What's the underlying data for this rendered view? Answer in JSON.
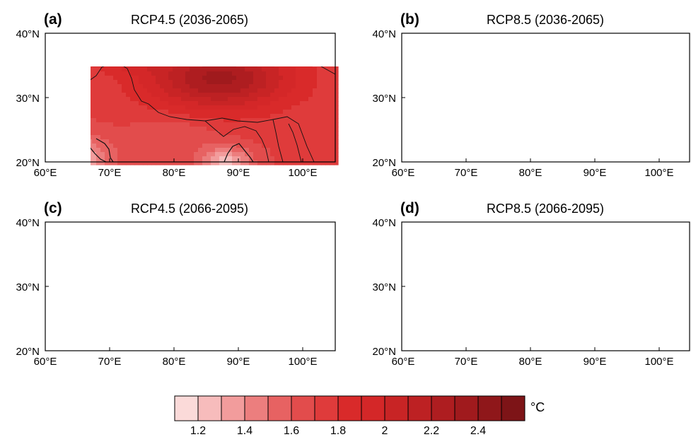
{
  "panels": [
    {
      "tag": "(a)",
      "title": "RCP4.5 (2036-2065)",
      "intensity": 0.82
    },
    {
      "tag": "(b)",
      "title": "RCP8.5 (2036-2065)",
      "intensity": 0.95
    },
    {
      "tag": "(c)",
      "title": "RCP4.5 (2066-2095)",
      "intensity": 0.95
    },
    {
      "tag": "(d)",
      "title": "RCP8.5 (2066-2095)",
      "intensity": 1.05
    }
  ],
  "lat_labels": [
    "40°N",
    "30°N",
    "20°N"
  ],
  "lon_labels": [
    "60°E",
    "70°E",
    "80°E",
    "90°E",
    "100°E"
  ],
  "colorbar": {
    "unit": "°C",
    "colors": [
      "#fbdad9",
      "#f7bcbc",
      "#f29c9c",
      "#ec7e7e",
      "#e76262",
      "#e24c4c",
      "#df3b3b",
      "#d92a2a",
      "#d42728",
      "#c82425",
      "#bd2123",
      "#ae1d20",
      "#a01a1d",
      "#8f171a",
      "#7d1417"
    ],
    "tick_labels": [
      "1.2",
      "1.4",
      "1.6",
      "1.8",
      "2",
      "2.2",
      "2.4"
    ]
  },
  "chart_data": {
    "type": "heatmap",
    "variable": "temperature change",
    "unit": "°C",
    "levels": [
      1.1,
      1.2,
      1.3,
      1.4,
      1.5,
      1.6,
      1.7,
      1.8,
      1.9,
      2.0,
      2.1,
      2.2,
      2.3,
      2.4,
      2.5,
      2.6
    ],
    "x_range": [
      60,
      105
    ],
    "y_range": [
      20,
      40
    ],
    "x_ticks": [
      60,
      70,
      80,
      90,
      100
    ],
    "y_ticks": [
      20,
      30,
      40
    ]
  }
}
